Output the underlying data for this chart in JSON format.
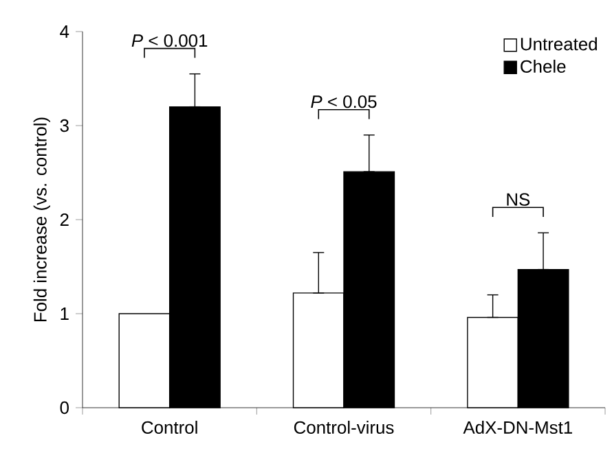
{
  "chart_data": {
    "type": "bar",
    "ylabel": "Fold increase (vs. control)",
    "categories": [
      "Control",
      "Control-virus",
      "AdX-DN-Mst1"
    ],
    "series": [
      {
        "name": "Untreated",
        "color": "#ffffff",
        "values": [
          1.0,
          1.22,
          0.96
        ],
        "errors": [
          null,
          [
            1.22,
            1.65
          ],
          [
            0.96,
            1.2
          ]
        ]
      },
      {
        "name": "Chele",
        "color": "#000000",
        "values": [
          3.2,
          2.51,
          1.47
        ],
        "errors": [
          [
            3.2,
            3.55
          ],
          [
            2.51,
            2.9
          ],
          [
            1.47,
            1.86
          ]
        ]
      }
    ],
    "ylim": [
      0,
      4
    ],
    "yticks": [
      0,
      1,
      2,
      3,
      4
    ],
    "legend": "top right",
    "grid": false,
    "annotations": [
      "*P* < 0.001",
      "*P* < 0.05",
      "NS"
    ]
  }
}
